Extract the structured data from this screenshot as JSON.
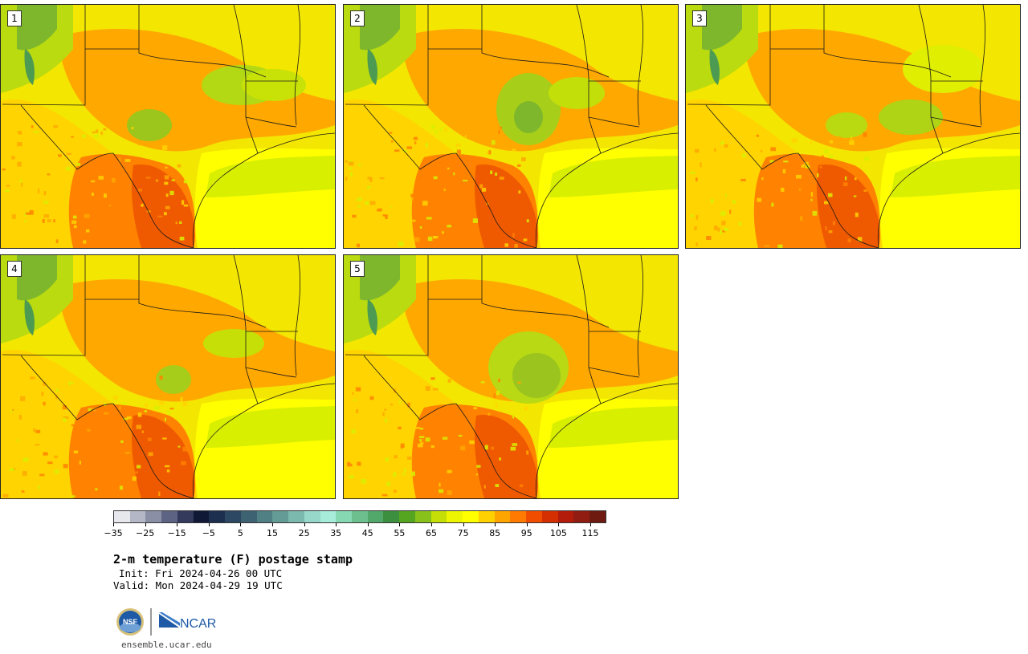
{
  "panels": [
    {
      "label": "1",
      "variant": 0
    },
    {
      "label": "2",
      "variant": 1
    },
    {
      "label": "3",
      "variant": 2
    },
    {
      "label": "4",
      "variant": 3
    },
    {
      "label": "5",
      "variant": 4
    }
  ],
  "colorbar": {
    "colors": [
      "#e6e8ee",
      "#b4b8c6",
      "#8a8fa6",
      "#5d6382",
      "#343a5c",
      "#101a36",
      "#1d2f4f",
      "#2c4862",
      "#3d6372",
      "#507f84",
      "#649b96",
      "#7bb8ad",
      "#97d7c9",
      "#a7ecdb",
      "#86d8b2",
      "#6dc08d",
      "#52a86a",
      "#3c8f3e",
      "#56a521",
      "#88c11a",
      "#c5de07",
      "#eef503",
      "#ffff00",
      "#ffd100",
      "#ffa500",
      "#ff7a00",
      "#f04d00",
      "#d42f00",
      "#b31c0a",
      "#901c12",
      "#6e1a10"
    ],
    "tick_labels": [
      "−35",
      "−25",
      "−15",
      "−5",
      "5",
      "15",
      "25",
      "35",
      "45",
      "55",
      "65",
      "75",
      "85",
      "95",
      "105",
      "115"
    ],
    "value_min": -40,
    "value_max": 120
  },
  "title": "2-m temperature (F) postage stamp",
  "init_line": "Init: Fri 2024-04-26 00 UTC",
  "valid_line": "Valid: Mon 2024-04-29 19 UTC",
  "logos": {
    "nsf": "NSF",
    "ncar": "NCAR"
  },
  "website": "ensemble.ucar.edu"
}
